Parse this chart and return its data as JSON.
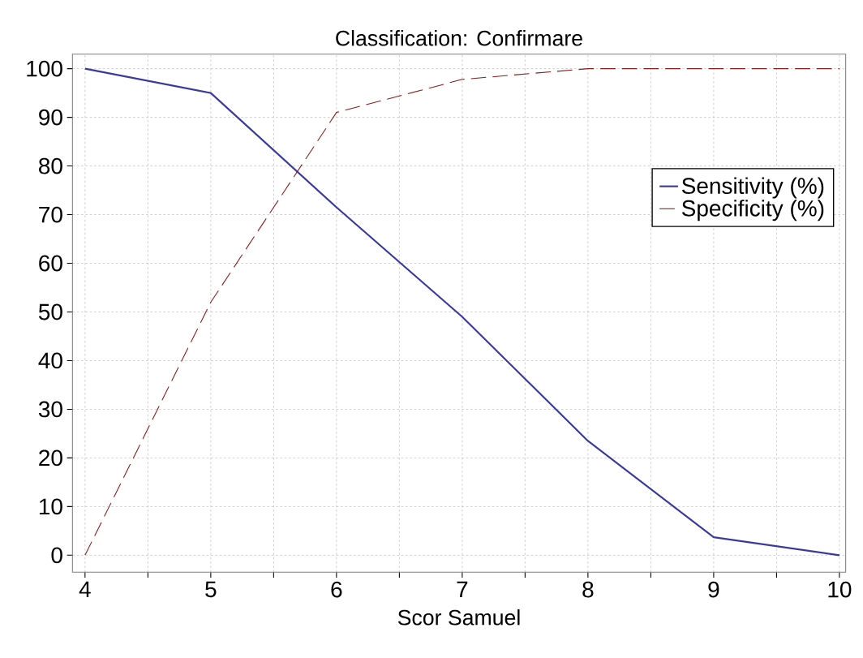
{
  "chart_data": {
    "type": "line",
    "title": "Classification: Confirmare",
    "xlabel": "Scor Samuel",
    "x": [
      4,
      5,
      6,
      7,
      8,
      9,
      10
    ],
    "series": [
      {
        "name": "Sensitivity (%)",
        "color": "#3a3a9e",
        "values": [
          100,
          95,
          71.5,
          49,
          23.5,
          3.7,
          0
        ],
        "line_style": "solid"
      },
      {
        "name": "Specificity (%)",
        "color": "#8b1a1a",
        "values": [
          0,
          52,
          91,
          97.8,
          100,
          100,
          100
        ],
        "line_style": "dashed"
      }
    ],
    "xlim": [
      3.9,
      10.05
    ],
    "ylim": [
      -3.5,
      103
    ],
    "xticks": [
      4,
      {
        "value": 4.5,
        "label": null
      },
      5,
      {
        "value": 5.5,
        "label": null
      },
      6,
      {
        "value": 6.5,
        "label": null
      },
      7,
      {
        "value": 7.5,
        "label": null
      },
      8,
      {
        "value": 8.5,
        "label": null
      },
      9,
      {
        "value": 9.5,
        "label": null
      },
      10
    ],
    "yticks": [
      0,
      10,
      20,
      30,
      40,
      50,
      60,
      70,
      80,
      90,
      100
    ],
    "grid": true,
    "legend": "right",
    "marker": "none"
  }
}
